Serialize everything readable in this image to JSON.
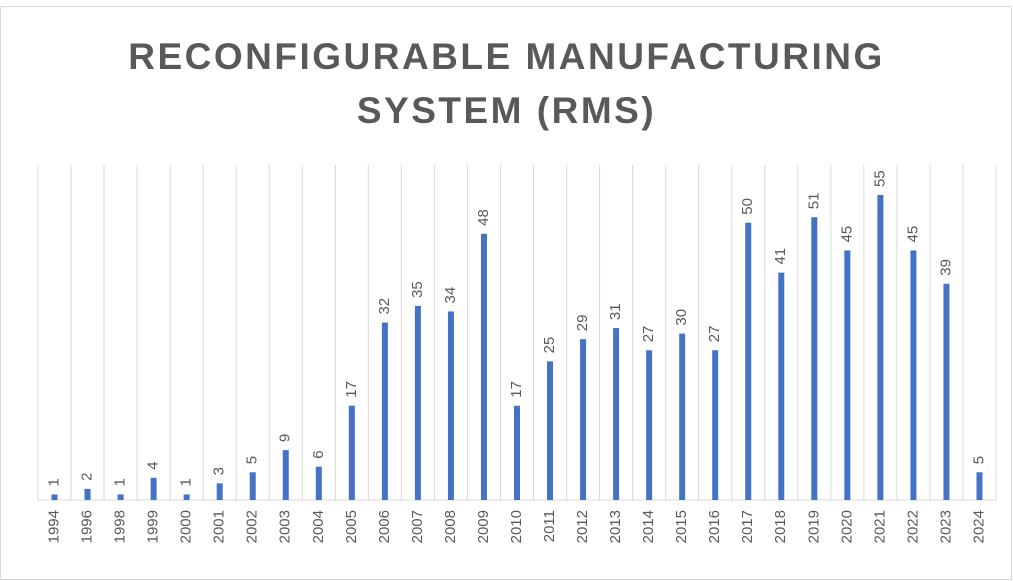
{
  "chart_data": {
    "type": "bar",
    "title": "RECONFIGURABLE MANUFACTURING SYSTEM (RMS)",
    "categories": [
      "1994",
      "1996",
      "1998",
      "1999",
      "2000",
      "2001",
      "2002",
      "2003",
      "2004",
      "2005",
      "2006",
      "2007",
      "2008",
      "2009",
      "2010",
      "2011",
      "2012",
      "2013",
      "2014",
      "2015",
      "2016",
      "2017",
      "2018",
      "2019",
      "2020",
      "2021",
      "2022",
      "2023",
      "2024"
    ],
    "values": [
      1,
      2,
      1,
      4,
      1,
      3,
      5,
      9,
      6,
      17,
      32,
      35,
      34,
      48,
      17,
      25,
      29,
      31,
      27,
      30,
      27,
      50,
      41,
      51,
      45,
      55,
      45,
      39,
      5
    ],
    "color": "#4472c4"
  }
}
